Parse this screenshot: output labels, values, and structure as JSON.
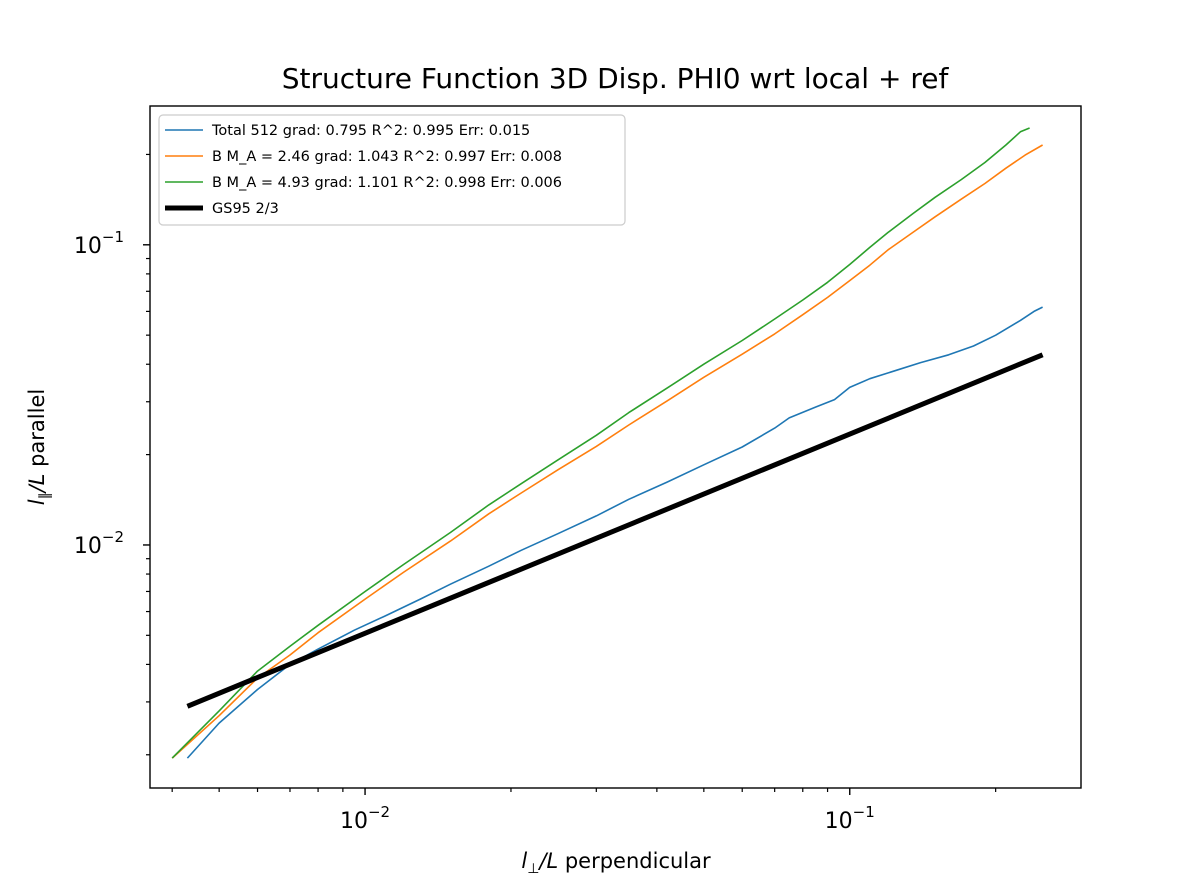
{
  "chart_data": {
    "type": "line",
    "title": "Structure Function 3D Disp. PHI0 wrt local + ref",
    "xlabel": "l⊥/L perpendicular",
    "ylabel": "l∥/L parallel",
    "xscale": "log",
    "yscale": "log",
    "xlim": [
      0.0036,
      0.3
    ],
    "ylim": [
      0.00155,
      0.29
    ],
    "xticks": [
      {
        "value": 0.01,
        "base": "10",
        "exp": "−2"
      },
      {
        "value": 0.1,
        "base": "10",
        "exp": "−1"
      }
    ],
    "yticks": [
      {
        "value": 0.01,
        "base": "10",
        "exp": "−2"
      },
      {
        "value": 0.1,
        "base": "10",
        "exp": "−1"
      }
    ],
    "grid": false,
    "legend_position": "upper-left",
    "series": [
      {
        "name": "Total 512 grad: 0.795 R^2: 0.995  Err: 0.015",
        "color": "#1f77b4",
        "width": 1.6,
        "points": [
          [
            0.0043,
            0.00195
          ],
          [
            0.005,
            0.00255
          ],
          [
            0.006,
            0.0033
          ],
          [
            0.007,
            0.004
          ],
          [
            0.008,
            0.0045
          ],
          [
            0.0095,
            0.0052
          ],
          [
            0.011,
            0.0058
          ],
          [
            0.013,
            0.0066
          ],
          [
            0.015,
            0.0074
          ],
          [
            0.018,
            0.0085
          ],
          [
            0.021,
            0.0096
          ],
          [
            0.025,
            0.0109
          ],
          [
            0.03,
            0.0125
          ],
          [
            0.035,
            0.0142
          ],
          [
            0.042,
            0.0162
          ],
          [
            0.05,
            0.0185
          ],
          [
            0.06,
            0.0212
          ],
          [
            0.07,
            0.0245
          ],
          [
            0.075,
            0.0265
          ],
          [
            0.085,
            0.0288
          ],
          [
            0.093,
            0.0305
          ],
          [
            0.1,
            0.0335
          ],
          [
            0.11,
            0.0358
          ],
          [
            0.125,
            0.0382
          ],
          [
            0.14,
            0.0405
          ],
          [
            0.16,
            0.043
          ],
          [
            0.18,
            0.046
          ],
          [
            0.2,
            0.05
          ],
          [
            0.225,
            0.056
          ],
          [
            0.24,
            0.06
          ],
          [
            0.25,
            0.062
          ]
        ]
      },
      {
        "name": "B M_A = 2.46 grad: 1.043 R^2: 0.997  Err: 0.008",
        "color": "#ff7f0e",
        "width": 1.6,
        "points": [
          [
            0.004,
            0.00195
          ],
          [
            0.005,
            0.0027
          ],
          [
            0.006,
            0.0036
          ],
          [
            0.007,
            0.0043
          ],
          [
            0.008,
            0.0051
          ],
          [
            0.01,
            0.0066
          ],
          [
            0.012,
            0.0081
          ],
          [
            0.015,
            0.0103
          ],
          [
            0.018,
            0.0127
          ],
          [
            0.021,
            0.0149
          ],
          [
            0.025,
            0.0178
          ],
          [
            0.03,
            0.0213
          ],
          [
            0.035,
            0.0251
          ],
          [
            0.042,
            0.0302
          ],
          [
            0.05,
            0.0362
          ],
          [
            0.06,
            0.0432
          ],
          [
            0.07,
            0.0505
          ],
          [
            0.08,
            0.0585
          ],
          [
            0.09,
            0.0668
          ],
          [
            0.1,
            0.076
          ],
          [
            0.11,
            0.0855
          ],
          [
            0.12,
            0.0962
          ],
          [
            0.135,
            0.11
          ],
          [
            0.15,
            0.124
          ],
          [
            0.17,
            0.142
          ],
          [
            0.19,
            0.16
          ],
          [
            0.21,
            0.18
          ],
          [
            0.23,
            0.199
          ],
          [
            0.25,
            0.215
          ]
        ]
      },
      {
        "name": "B M_A = 4.93 grad: 1.101 R^2: 0.998  Err: 0.006",
        "color": "#2ca02c",
        "width": 1.6,
        "points": [
          [
            0.004,
            0.00195
          ],
          [
            0.005,
            0.0028
          ],
          [
            0.006,
            0.0038
          ],
          [
            0.007,
            0.0046
          ],
          [
            0.008,
            0.0054
          ],
          [
            0.01,
            0.007
          ],
          [
            0.012,
            0.0086
          ],
          [
            0.015,
            0.011
          ],
          [
            0.018,
            0.0136
          ],
          [
            0.021,
            0.016
          ],
          [
            0.025,
            0.0192
          ],
          [
            0.03,
            0.0232
          ],
          [
            0.035,
            0.0276
          ],
          [
            0.042,
            0.0333
          ],
          [
            0.05,
            0.04
          ],
          [
            0.06,
            0.048
          ],
          [
            0.07,
            0.0566
          ],
          [
            0.08,
            0.0655
          ],
          [
            0.09,
            0.075
          ],
          [
            0.1,
            0.086
          ],
          [
            0.11,
            0.098
          ],
          [
            0.12,
            0.11
          ],
          [
            0.135,
            0.127
          ],
          [
            0.15,
            0.144
          ],
          [
            0.17,
            0.165
          ],
          [
            0.19,
            0.188
          ],
          [
            0.21,
            0.215
          ],
          [
            0.225,
            0.238
          ],
          [
            0.235,
            0.245
          ]
        ]
      },
      {
        "name": "GS95 2/3",
        "color": "#000000",
        "width": 5,
        "points": [
          [
            0.0043,
            0.0029
          ],
          [
            0.25,
            0.043
          ]
        ]
      }
    ]
  }
}
